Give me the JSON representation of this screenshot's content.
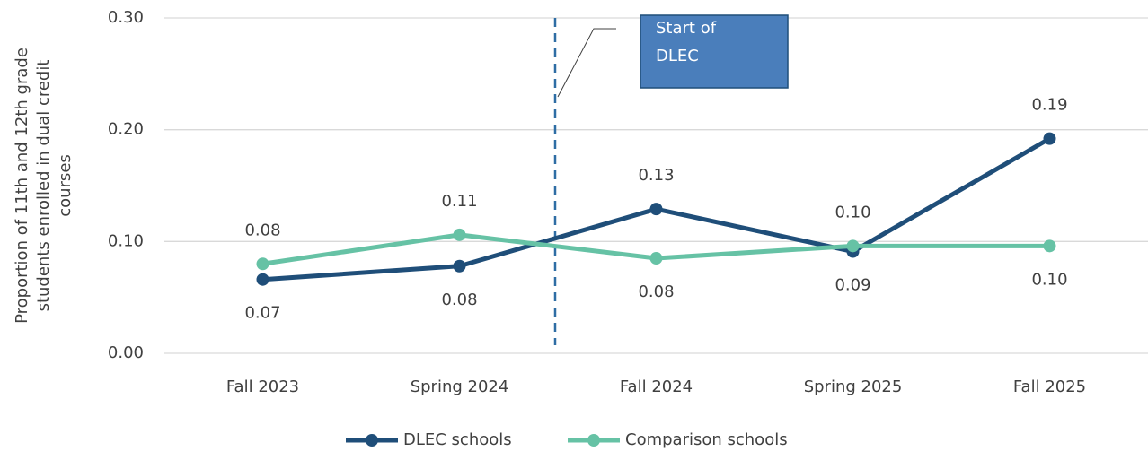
{
  "chart_data": {
    "type": "line",
    "ylabel": [
      "Proportion of 11th and 12th grade",
      "students enrolled in dual credit",
      "courses"
    ],
    "categories": [
      "Fall 2023",
      "Spring 2024",
      "Fall 2024",
      "Spring 2025",
      "Fall 2025"
    ],
    "series": [
      {
        "name": "DLEC schools",
        "color": "#1f4e79",
        "values": [
          0.066,
          0.078,
          0.129,
          0.091,
          0.192
        ],
        "value_labels": [
          "0.07",
          "0.08",
          "0.13",
          "0.09",
          "0.19"
        ]
      },
      {
        "name": "Comparison schools",
        "color": "#66c2a5",
        "values": [
          0.08,
          0.106,
          0.085,
          0.096,
          0.096
        ],
        "value_labels": [
          "0.08",
          "0.11",
          "0.08",
          "0.10",
          "0.10"
        ]
      }
    ],
    "ylim": [
      0,
      0.3
    ],
    "yticks": [
      {
        "value": 0,
        "label": "0.00"
      },
      {
        "value": 0.1,
        "label": "0.10"
      },
      {
        "value": 0.2,
        "label": "0.20"
      },
      {
        "value": 0.3,
        "label": "0.30"
      }
    ],
    "grid": true,
    "legend": "bottom",
    "annotation": [
      "Start of",
      "DLEC"
    ]
  }
}
